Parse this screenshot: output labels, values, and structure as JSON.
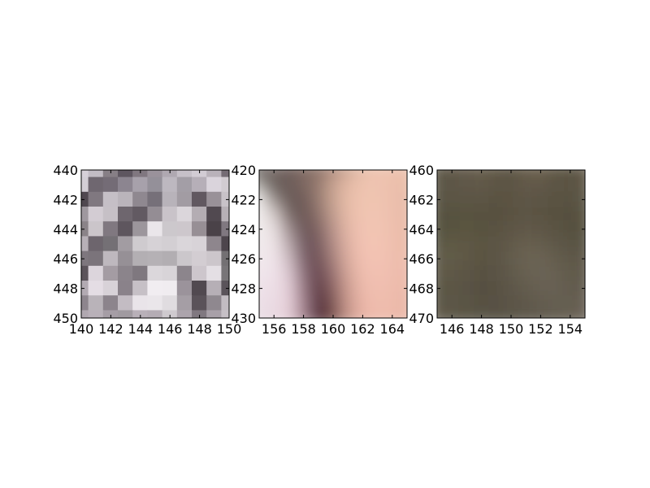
{
  "chart_data": [
    {
      "type": "heatmap",
      "style": "nearest",
      "x": {
        "lim": [
          140,
          150
        ],
        "ticks": [
          140,
          142,
          144,
          146,
          148,
          150
        ]
      },
      "y": {
        "lim": [
          440,
          450
        ],
        "ticks": [
          440,
          442,
          444,
          446,
          448,
          450
        ],
        "inverted": true
      },
      "cells": [
        [
          "#d6d0d8",
          "#c2bcc4",
          "#877f86",
          "#5e5660",
          "#807780",
          "#9a929b",
          "#afa8b1",
          "#c6c0c8",
          "#d2ccd4",
          "#b9b2ba",
          "#746b74"
        ],
        [
          "#d3ced5",
          "#6f6770",
          "#746c76",
          "#8c8590",
          "#a7a1ab",
          "#949099",
          "#bdb8c0",
          "#a39ea6",
          "#b6afb8",
          "#dad4dc",
          "#d1cbd1"
        ],
        [
          "#504850",
          "#807880",
          "#c5bfc6",
          "#bab4bb",
          "#8f8890",
          "#767079",
          "#b8b3ba",
          "#a29ca3",
          "#615860",
          "#999198",
          "#c8c2c8"
        ],
        [
          "#9f989f",
          "#d3ccd3",
          "#c6c0c6",
          "#6e666e",
          "#625a62",
          "#948d94",
          "#c9c3c9",
          "#dbd6db",
          "#b4adb3",
          "#514950",
          "#b7b0b6"
        ],
        [
          "#8a8388",
          "#cbc5ca",
          "#807880",
          "#5e565e",
          "#9c969c",
          "#eae6ea",
          "#ccc8cc",
          "#cdc7cc",
          "#978f95",
          "#4a4248",
          "#807880"
        ],
        [
          "#b7b0b7",
          "#6d656d",
          "#747075",
          "#a29ca2",
          "#cfcbcf",
          "#d6d2d6",
          "#d3cfd3",
          "#dad6da",
          "#d8d3d8",
          "#8e868d",
          "#4d454c"
        ],
        [
          "#7e777e",
          "#7b747b",
          "#beb8be",
          "#969096",
          "#b3afb3",
          "#b5b1b5",
          "#b2aeb2",
          "#cbc7cb",
          "#d3cdd2",
          "#ccc6cb",
          "#737073"
        ],
        [
          "#5c545b",
          "#dcd5dc",
          "#a49ca3",
          "#8b848b",
          "#7f787f",
          "#dbd7db",
          "#d8d4d8",
          "#8c858c",
          "#cdc6cc",
          "#e4dfe4",
          "#787578"
        ],
        [
          "#b2aab2",
          "#e4dde4",
          "#d8d2d8",
          "#8a828a",
          "#c6c0c6",
          "#f1edf1",
          "#f0ecf0",
          "#9b939b",
          "#514950",
          "#b6afb6",
          "#5a535a"
        ],
        [
          "#8d858d",
          "#b9b3b9",
          "#8c848c",
          "#c3bcc3",
          "#e9e4e9",
          "#eae6ea",
          "#e0dce0",
          "#a59ea5",
          "#5a5259",
          "#8f888f",
          "#c2bcc2"
        ],
        [
          "#b0a8b0",
          "#b8b0b8",
          "#a59da5",
          "#a09aa0",
          "#b8b0b8",
          "#b4acb4",
          "#cfcacf",
          "#aca4ac",
          "#807880",
          "#a8a0a8",
          "#c6c0c6"
        ]
      ]
    },
    {
      "type": "heatmap",
      "style": "smooth",
      "x": {
        "lim": [
          155,
          165
        ],
        "ticks": [
          156,
          158,
          160,
          162,
          164
        ]
      },
      "y": {
        "lim": [
          420,
          430
        ],
        "ticks": [
          420,
          422,
          424,
          426,
          428,
          430
        ],
        "inverted": true
      },
      "cells": [
        [
          "#66605e",
          "#7b6e6a",
          "#6e5f5b",
          "#806b64",
          "#8e746a",
          "#b08e80",
          "#d0aa98",
          "#e7c0ac",
          "#efc4b0",
          "#edc2ae",
          "#ebbfab"
        ],
        [
          "#a8a49f",
          "#6b605c",
          "#6a5b58",
          "#7b6660",
          "#957a70",
          "#c4a08f",
          "#e2b8a4",
          "#edc3af",
          "#efc3b0",
          "#ecc0ad",
          "#e9bda9"
        ],
        [
          "#ebe8e6",
          "#998e8a",
          "#6a5b58",
          "#705c58",
          "#957a71",
          "#c6a291",
          "#e6bca8",
          "#efc4b0",
          "#f0c4b1",
          "#ecc0ad",
          "#e8bca8"
        ],
        [
          "#f2eeee",
          "#d2c8c6",
          "#7d6d6b",
          "#6b5755",
          "#8c716b",
          "#c09c8e",
          "#e5baa7",
          "#f0c4b1",
          "#f1c4b2",
          "#edc0ae",
          "#e8bba8"
        ],
        [
          "#f0ebec",
          "#e8dfe0",
          "#a08f90",
          "#6c5759",
          "#7f6462",
          "#b7938a",
          "#e2b6a6",
          "#f1c3b2",
          "#f2c5b3",
          "#eec0ae",
          "#e9bba9"
        ],
        [
          "#efe8ea",
          "#eee4e7",
          "#b9a8ac",
          "#735c62",
          "#765a5d",
          "#af8a85",
          "#deb1a3",
          "#f2c2b2",
          "#f3c4b4",
          "#efc0af",
          "#eabba9"
        ],
        [
          "#efe6ea",
          "#f0e5ea",
          "#ccbac0",
          "#7f646c",
          "#6f5157",
          "#a4807c",
          "#d9ac9f",
          "#f1c0b1",
          "#f3c3b4",
          "#efbfaf",
          "#ebbbaa"
        ],
        [
          "#efe3e9",
          "#f0e3ea",
          "#dac6cf",
          "#8d6f79",
          "#674650",
          "#977172",
          "#d2a498",
          "#eebdae",
          "#f2c1b2",
          "#efbeaf",
          "#ebbaaa"
        ],
        [
          "#ede0e7",
          "#eddfe6",
          "#e2ccd6",
          "#987882",
          "#5f3c46",
          "#8a6464",
          "#cb9c91",
          "#ebb9ab",
          "#f1bfb0",
          "#eebcad",
          "#ebb9a9"
        ],
        [
          "#ebdde5",
          "#ebdce4",
          "#e5ced8",
          "#a1808b",
          "#58343f",
          "#7d5756",
          "#c6978c",
          "#e9b5a7",
          "#f0bdae",
          "#edbbac",
          "#eab8a8"
        ],
        [
          "#e9dbe3",
          "#e9dae2",
          "#e5cdd7",
          "#a6848f",
          "#552f3a",
          "#774f4e",
          "#c49489",
          "#e8b4a6",
          "#efbcad",
          "#edbaab",
          "#eab7a7"
        ]
      ]
    },
    {
      "type": "heatmap",
      "style": "smooth",
      "x": {
        "lim": [
          145,
          155
        ],
        "ticks": [
          146,
          148,
          150,
          152,
          154
        ]
      },
      "y": {
        "lim": [
          460,
          470
        ],
        "ticks": [
          460,
          462,
          464,
          466,
          468,
          470
        ],
        "inverted": true
      },
      "cells": [
        [
          "#5a5444",
          "#5e5646",
          "#625948",
          "#665d4b",
          "#5e5644",
          "#5a5242",
          "#675d4b",
          "#6a604e",
          "#5f5645",
          "#5c5444",
          "#625a4a"
        ],
        [
          "#5c5646",
          "#5d5747",
          "#605848",
          "#625a49",
          "#5d5545",
          "#5c5444",
          "#635a49",
          "#62594a",
          "#5b5444",
          "#5a5343",
          "#605848"
        ],
        [
          "#5a5545",
          "#5b5545",
          "#5c5544",
          "#5c5545",
          "#5a5343",
          "#5b5343",
          "#5e5646",
          "#5c5545",
          "#5a5343",
          "#595242",
          "#5d5646"
        ],
        [
          "#545040",
          "#57523f",
          "#585240",
          "#585140",
          "#575040",
          "#5a5242",
          "#5d5545",
          "#5a5343",
          "#585141",
          "#575040",
          "#5a5343"
        ],
        [
          "#555240",
          "#58533f",
          "#5a5440",
          "#595241",
          "#5a5342",
          "#5d5545",
          "#615949",
          "#5e5747",
          "#5a5343",
          "#575141",
          "#595242"
        ],
        [
          "#5c5846",
          "#5f5a44",
          "#5f5844",
          "#5b5443",
          "#5c5545",
          "#625a4a",
          "#675f4f",
          "#655d4e",
          "#5f5848",
          "#5a5444",
          "#5a5444"
        ],
        [
          "#625d4b",
          "#625c48",
          "#5f5845",
          "#5a5343",
          "#5c5545",
          "#645c4d",
          "#6b6353",
          "#6c6455",
          "#655d4e",
          "#5f5849",
          "#5e5748"
        ],
        [
          "#5f5a49",
          "#5f5947",
          "#5c5544",
          "#585142",
          "#5a5344",
          "#615a4b",
          "#686051",
          "#6b6455",
          "#686152",
          "#625b4c",
          "#615a4c"
        ],
        [
          "#5c5746",
          "#5c5645",
          "#5a5344",
          "#575042",
          "#585143",
          "#5d5648",
          "#635c4e",
          "#676052",
          "#676053",
          "#635c4f",
          "#645d50"
        ],
        [
          "#5c5747",
          "#5c5646",
          "#5a5445",
          "#585143",
          "#585144",
          "#5b5447",
          "#5f594b",
          "#635c4f",
          "#655e51",
          "#655e51",
          "#685f53"
        ],
        [
          "#5e5949",
          "#5e5848",
          "#5c5647",
          "#5a5446",
          "#595345",
          "#5a5447",
          "#5d574a",
          "#615a4d",
          "#645d50",
          "#675f53",
          "#6a6256"
        ]
      ]
    }
  ]
}
